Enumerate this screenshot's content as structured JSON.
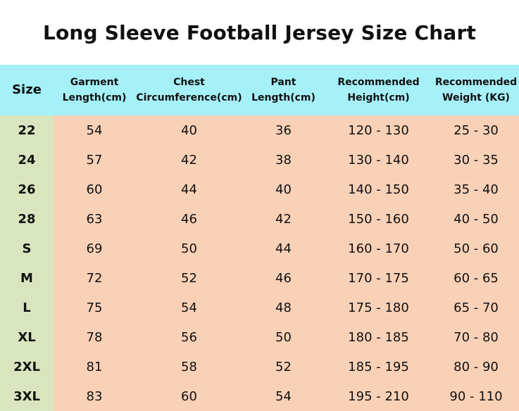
{
  "title": "Long Sleeve Football Jersey Size Chart",
  "headers": [
    "Size",
    "Garment\nLength(cm)",
    "Chest\nCircumference(cm)",
    "Pant\nLength(cm)",
    "Recommended\nHeight(cm)",
    "Recommended\nWeight (KG)"
  ],
  "rows": [
    [
      "22",
      "54",
      "40",
      "36",
      "120 - 130",
      "25 - 30"
    ],
    [
      "24",
      "57",
      "42",
      "38",
      "130 - 140",
      "30 - 35"
    ],
    [
      "26",
      "60",
      "44",
      "40",
      "140 - 150",
      "35 - 40"
    ],
    [
      "28",
      "63",
      "46",
      "42",
      "150 - 160",
      "40 - 50"
    ],
    [
      "S",
      "69",
      "50",
      "44",
      "160 - 170",
      "50 - 60"
    ],
    [
      "M",
      "72",
      "52",
      "46",
      "170 - 175",
      "60 - 65"
    ],
    [
      "L",
      "75",
      "54",
      "48",
      "175 - 180",
      "65 - 70"
    ],
    [
      "XL",
      "78",
      "56",
      "50",
      "180 - 185",
      "70 - 80"
    ],
    [
      "2XL",
      "81",
      "58",
      "52",
      "185 - 195",
      "80 - 90"
    ],
    [
      "3XL",
      "83",
      "60",
      "54",
      "195 - 210",
      "90 - 110"
    ]
  ],
  "colors": {
    "header_bg": "#a6f1f8",
    "size_column_bg": "#d9e5be",
    "body_bg": "#f9d1b7"
  }
}
